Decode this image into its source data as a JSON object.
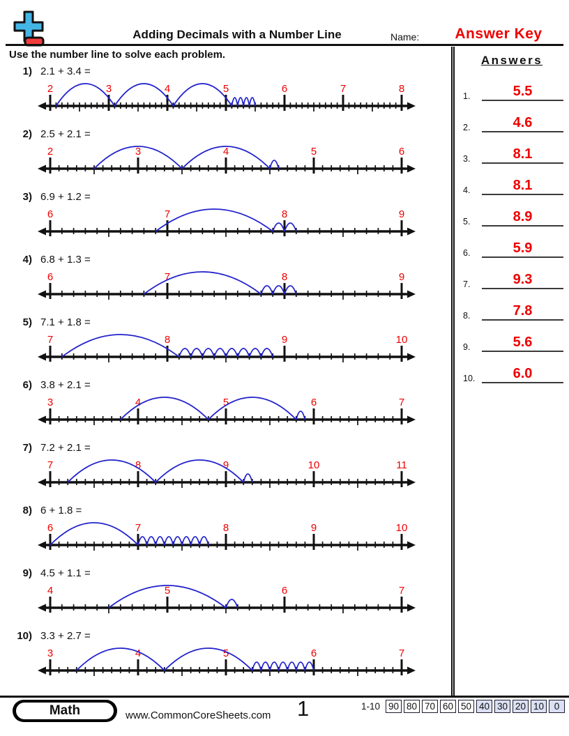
{
  "header": {
    "title": "Adding Decimals with a Number Line",
    "name_label": "Name:",
    "answer_key": "Answer Key"
  },
  "instruction": "Use the number line to solve each problem.",
  "answers_header": "Answers",
  "problems": [
    {
      "num": "1)",
      "equation": "2.1 + 3.4 =",
      "numberline": {
        "min": 2,
        "max": 8,
        "start": 2.1,
        "whole_jumps": 3,
        "tenth_jumps": 4
      }
    },
    {
      "num": "2)",
      "equation": "2.5 + 2.1 =",
      "numberline": {
        "min": 2,
        "max": 6,
        "start": 2.5,
        "whole_jumps": 2,
        "tenth_jumps": 1
      }
    },
    {
      "num": "3)",
      "equation": "6.9 + 1.2 =",
      "numberline": {
        "min": 6,
        "max": 9,
        "start": 6.9,
        "whole_jumps": 1,
        "tenth_jumps": 2
      }
    },
    {
      "num": "4)",
      "equation": "6.8 + 1.3 =",
      "numberline": {
        "min": 6,
        "max": 9,
        "start": 6.8,
        "whole_jumps": 1,
        "tenth_jumps": 3
      }
    },
    {
      "num": "5)",
      "equation": "7.1 + 1.8 =",
      "numberline": {
        "min": 7,
        "max": 10,
        "start": 7.1,
        "whole_jumps": 1,
        "tenth_jumps": 8
      }
    },
    {
      "num": "6)",
      "equation": "3.8 + 2.1 =",
      "numberline": {
        "min": 3,
        "max": 7,
        "start": 3.8,
        "whole_jumps": 2,
        "tenth_jumps": 1
      }
    },
    {
      "num": "7)",
      "equation": "7.2 + 2.1 =",
      "numberline": {
        "min": 7,
        "max": 11,
        "start": 7.2,
        "whole_jumps": 2,
        "tenth_jumps": 1
      }
    },
    {
      "num": "8)",
      "equation": "6 + 1.8 =",
      "numberline": {
        "min": 6,
        "max": 10,
        "start": 6,
        "whole_jumps": 1,
        "tenth_jumps": 8
      }
    },
    {
      "num": "9)",
      "equation": "4.5 + 1.1 =",
      "numberline": {
        "min": 4,
        "max": 7,
        "start": 4.5,
        "whole_jumps": 1,
        "tenth_jumps": 1
      }
    },
    {
      "num": "10)",
      "equation": "3.3 + 2.7 =",
      "numberline": {
        "min": 3,
        "max": 7,
        "start": 3.3,
        "whole_jumps": 2,
        "tenth_jumps": 7
      }
    }
  ],
  "answers": [
    {
      "label": "1.",
      "value": "5.5"
    },
    {
      "label": "2.",
      "value": "4.6"
    },
    {
      "label": "3.",
      "value": "8.1"
    },
    {
      "label": "4.",
      "value": "8.1"
    },
    {
      "label": "5.",
      "value": "8.9"
    },
    {
      "label": "6.",
      "value": "5.9"
    },
    {
      "label": "7.",
      "value": "9.3"
    },
    {
      "label": "8.",
      "value": "7.8"
    },
    {
      "label": "9.",
      "value": "5.6"
    },
    {
      "label": "10.",
      "value": "6.0"
    }
  ],
  "footer": {
    "subject": "Math",
    "url": "www.CommonCoreSheets.com",
    "page_number": "1",
    "score_label": "1-10",
    "scores": [
      {
        "value": "90",
        "shaded": false
      },
      {
        "value": "80",
        "shaded": false
      },
      {
        "value": "70",
        "shaded": false
      },
      {
        "value": "60",
        "shaded": false
      },
      {
        "value": "50",
        "shaded": false
      },
      {
        "value": "40",
        "shaded": true
      },
      {
        "value": "30",
        "shaded": true
      },
      {
        "value": "20",
        "shaded": true
      },
      {
        "value": "10",
        "shaded": true
      },
      {
        "value": "0",
        "shaded": true
      }
    ]
  },
  "colors": {
    "accent_red": "#ee0000",
    "arc_blue": "#2222cc",
    "line_black": "#111111",
    "score_shade": "#dbe0f4",
    "logo_blue": "#45b5e6",
    "logo_red": "#f23c3c"
  }
}
